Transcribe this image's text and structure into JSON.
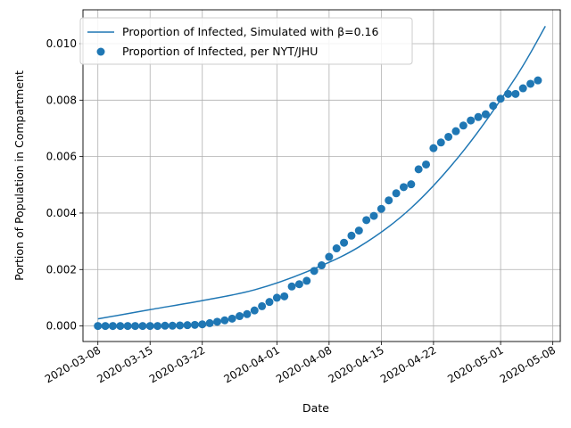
{
  "chart_data": {
    "type": "scatter",
    "xlabel": "Date",
    "ylabel": "Portion of Population in Compartment",
    "x_ticks": [
      "2020-03-08",
      "2020-03-15",
      "2020-03-22",
      "2020-04-01",
      "2020-04-08",
      "2020-04-15",
      "2020-04-22",
      "2020-05-01",
      "2020-05-08"
    ],
    "y_ticks": [
      "0.000",
      "0.002",
      "0.004",
      "0.006",
      "0.008",
      "0.010"
    ],
    "xlim": [
      "2020-03-06",
      "2020-05-09"
    ],
    "ylim": [
      -0.00055,
      0.0112
    ],
    "grid": true,
    "legend_position": "top-left",
    "colors": {
      "series": "#1f77b4",
      "grid": "#b0b0b0"
    },
    "series": [
      {
        "name": "Proportion of Infected, Simulated with β=0.16",
        "kind": "line",
        "x": [
          "2020-03-08",
          "2020-03-15",
          "2020-03-22",
          "2020-03-29",
          "2020-04-05",
          "2020-04-12",
          "2020-04-19",
          "2020-04-26",
          "2020-05-03",
          "2020-05-07"
        ],
        "y": [
          0.00025,
          0.00058,
          0.0009,
          0.00128,
          0.00192,
          0.0028,
          0.00418,
          0.0062,
          0.0088,
          0.01062
        ]
      },
      {
        "name": "Proportion of Infected, per NYT/JHU",
        "kind": "scatter",
        "x": [
          "2020-03-08",
          "2020-03-09",
          "2020-03-10",
          "2020-03-11",
          "2020-03-12",
          "2020-03-13",
          "2020-03-14",
          "2020-03-15",
          "2020-03-16",
          "2020-03-17",
          "2020-03-18",
          "2020-03-19",
          "2020-03-20",
          "2020-03-21",
          "2020-03-22",
          "2020-03-23",
          "2020-03-24",
          "2020-03-25",
          "2020-03-26",
          "2020-03-27",
          "2020-03-28",
          "2020-03-29",
          "2020-03-30",
          "2020-03-31",
          "2020-04-01",
          "2020-04-02",
          "2020-04-03",
          "2020-04-04",
          "2020-04-05",
          "2020-04-06",
          "2020-04-07",
          "2020-04-08",
          "2020-04-09",
          "2020-04-10",
          "2020-04-11",
          "2020-04-12",
          "2020-04-13",
          "2020-04-14",
          "2020-04-15",
          "2020-04-16",
          "2020-04-17",
          "2020-04-18",
          "2020-04-19",
          "2020-04-20",
          "2020-04-21",
          "2020-04-22",
          "2020-04-23",
          "2020-04-24",
          "2020-04-25",
          "2020-04-26",
          "2020-04-27",
          "2020-04-28",
          "2020-04-29",
          "2020-04-30",
          "2020-05-01",
          "2020-05-02",
          "2020-05-03",
          "2020-05-04",
          "2020-05-05",
          "2020-05-06"
        ],
        "y": [
          0.0,
          0.0,
          0.0,
          0.0,
          0.0,
          0.0,
          0.0,
          0.0,
          0.0,
          1e-05,
          1e-05,
          2e-05,
          3e-05,
          4e-05,
          6e-05,
          0.0001,
          0.00015,
          0.0002,
          0.00026,
          0.00035,
          0.00042,
          0.00055,
          0.0007,
          0.00085,
          0.001,
          0.00105,
          0.0014,
          0.00148,
          0.0016,
          0.00195,
          0.00215,
          0.00245,
          0.00275,
          0.00295,
          0.0032,
          0.00338,
          0.00375,
          0.0039,
          0.00415,
          0.00445,
          0.0047,
          0.00492,
          0.00502,
          0.00555,
          0.00572,
          0.0063,
          0.0065,
          0.0067,
          0.0069,
          0.0071,
          0.00728,
          0.0074,
          0.0075,
          0.0078,
          0.00805,
          0.00822,
          0.00822,
          0.00842,
          0.00858,
          0.0087
        ]
      }
    ]
  }
}
